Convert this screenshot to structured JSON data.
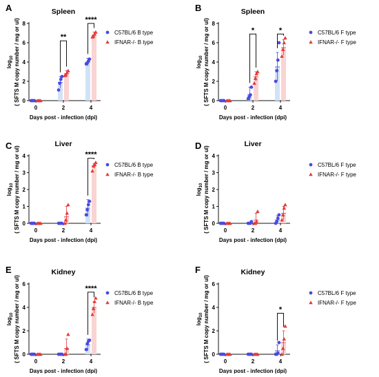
{
  "colors": {
    "c57": "#4a4ae0",
    "ifnar": "#e03c3c",
    "c57_bar": "#d3e2f5",
    "ifnar_bar": "#fad3d3",
    "axis": "#111111"
  },
  "common": {
    "ylabel_line1": "log",
    "ylabel_sub": "10",
    "ylabel_line2": "( SFTS M copy number / mg or ul)",
    "xlabel": "Days post - infection (dpi)"
  },
  "chart_data": [
    {
      "panel": "A",
      "title": "Spleen",
      "type": "bar",
      "categories": [
        "0",
        "2",
        "4"
      ],
      "ylim": [
        0,
        8
      ],
      "yticks": [
        0,
        2,
        4,
        6,
        8
      ],
      "series": [
        {
          "name": "C57BL/6 B type",
          "marker": "circle",
          "values": [
            0,
            1.9,
            4.0
          ],
          "errors": [
            0,
            0.6,
            0.4
          ],
          "points": [
            [
              0,
              0,
              0,
              0
            ],
            [
              1.1,
              1.8,
              2.2,
              2.5
            ],
            [
              3.8,
              3.9,
              4.1,
              4.3
            ]
          ]
        },
        {
          "name": "IFNAR-/- B type",
          "marker": "triangle",
          "values": [
            0,
            2.8,
            6.8
          ],
          "errors": [
            0,
            0.3,
            0.3
          ],
          "points": [
            [
              0,
              0,
              0,
              0
            ],
            [
              2.6,
              2.7,
              2.9,
              3.1
            ],
            [
              6.6,
              6.7,
              6.9,
              7.1
            ]
          ]
        }
      ],
      "significance": [
        {
          "category": 1,
          "label": "**",
          "y": 6.2
        },
        {
          "category": 2,
          "label": "****",
          "y": 8.0
        }
      ]
    },
    {
      "panel": "B",
      "title": "Spleen",
      "type": "bar",
      "categories": [
        "0",
        "2",
        "4"
      ],
      "ylim": [
        0,
        8
      ],
      "yticks": [
        0,
        2,
        4,
        6,
        8
      ],
      "series": [
        {
          "name": "C57BL/6 F type",
          "marker": "circle",
          "values": [
            0,
            0.6,
            3.5
          ],
          "errors": [
            0,
            0.8,
            1.5
          ],
          "points": [
            [
              0,
              0,
              0,
              0
            ],
            [
              0.2,
              0.4,
              0.6,
              1.4
            ],
            [
              2.0,
              3.1,
              4.2,
              6.0
            ]
          ]
        },
        {
          "name": "IFNAR-/- F type",
          "marker": "triangle",
          "values": [
            0,
            2.5,
            5.5
          ],
          "errors": [
            0,
            0.5,
            0.8
          ],
          "points": [
            [
              0,
              0,
              0,
              0
            ],
            [
              1.8,
              2.3,
              2.8,
              3.0
            ],
            [
              4.6,
              5.3,
              6.0,
              6.5
            ]
          ]
        }
      ],
      "significance": [
        {
          "category": 1,
          "label": "*",
          "y": 6.9
        },
        {
          "category": 2,
          "label": "*",
          "y": 6.9
        }
      ]
    },
    {
      "panel": "C",
      "title": "Liver",
      "type": "bar",
      "categories": [
        "0",
        "2",
        "4"
      ],
      "ylim": [
        0,
        4
      ],
      "yticks": [
        0,
        1,
        2,
        3,
        4
      ],
      "series": [
        {
          "name": "C57BL/6 B type",
          "marker": "circle",
          "values": [
            0,
            0,
            0.9
          ],
          "errors": [
            0,
            0,
            0.5
          ],
          "points": [
            [
              0,
              0,
              0,
              0
            ],
            [
              0,
              0,
              0,
              0
            ],
            [
              0.5,
              0.8,
              1.1,
              1.3
            ]
          ]
        },
        {
          "name": "IFNAR-/- B type",
          "marker": "triangle",
          "values": [
            0,
            0.4,
            3.4
          ],
          "errors": [
            0,
            0.6,
            0.15
          ],
          "points": [
            [
              0,
              0,
              0,
              0
            ],
            [
              0,
              0.2,
              0.6,
              1.1
            ],
            [
              3.1,
              3.4,
              3.5,
              3.6
            ]
          ]
        }
      ],
      "significance": [
        {
          "category": 2,
          "label": "****",
          "y": 3.85
        }
      ]
    },
    {
      "panel": "D",
      "title": "Liver",
      "type": "bar",
      "categories": [
        "0",
        "2",
        "4"
      ],
      "ylim": [
        0,
        4
      ],
      "yticks": [
        0,
        1,
        2,
        3,
        4
      ],
      "series": [
        {
          "name": "C57BL/6 F type",
          "marker": "circle",
          "values": [
            0,
            0,
            0.2
          ],
          "errors": [
            0,
            0,
            0.25
          ],
          "points": [
            [
              0,
              0,
              0,
              0
            ],
            [
              0,
              0,
              0,
              0.1
            ],
            [
              0,
              0.1,
              0.3,
              0.5
            ]
          ]
        },
        {
          "name": "IFNAR-/- F type",
          "marker": "triangle",
          "values": [
            0,
            0.2,
            0.6
          ],
          "errors": [
            0,
            0.4,
            0.4
          ],
          "points": [
            [
              0,
              0,
              0,
              0
            ],
            [
              0,
              0,
              0.1,
              0.7
            ],
            [
              0.2,
              0.5,
              0.9,
              1.1
            ]
          ]
        }
      ],
      "significance": []
    },
    {
      "panel": "E",
      "title": "Kidney",
      "type": "bar",
      "categories": [
        "0",
        "2",
        "4"
      ],
      "ylim": [
        0,
        6
      ],
      "yticks": [
        0,
        2,
        4,
        6
      ],
      "series": [
        {
          "name": "C57BL/6 B type",
          "marker": "circle",
          "values": [
            0,
            0,
            0.8
          ],
          "errors": [
            0,
            0,
            0.5
          ],
          "points": [
            [
              0,
              0,
              0,
              0
            ],
            [
              0,
              0,
              0,
              0
            ],
            [
              0.4,
              0.9,
              1.1,
              1.2
            ]
          ]
        },
        {
          "name": "IFNAR-/- B type",
          "marker": "triangle",
          "values": [
            0,
            0.5,
            4.0
          ],
          "errors": [
            0,
            0.8,
            0.5
          ],
          "points": [
            [
              0,
              0,
              0,
              0
            ],
            [
              0,
              0,
              0.5,
              1.7
            ],
            [
              3.4,
              3.9,
              4.5,
              4.8
            ]
          ]
        }
      ],
      "significance": [
        {
          "category": 2,
          "label": "****",
          "y": 5.3
        }
      ]
    },
    {
      "panel": "F",
      "title": "Kidney",
      "type": "bar",
      "categories": [
        "0",
        "2",
        "4"
      ],
      "ylim": [
        0,
        6
      ],
      "yticks": [
        0,
        2,
        4,
        6
      ],
      "series": [
        {
          "name": "C57BL/6 F type",
          "marker": "circle",
          "values": [
            0,
            0,
            0.3
          ],
          "errors": [
            0,
            0,
            0.5
          ],
          "points": [
            [
              0,
              0,
              0,
              0
            ],
            [
              0,
              0,
              0,
              0
            ],
            [
              0,
              0,
              0.1,
              1.0
            ]
          ]
        },
        {
          "name": "IFNAR-/- F type",
          "marker": "triangle",
          "values": [
            0,
            0,
            1.0
          ],
          "errors": [
            0,
            0,
            1.0
          ],
          "points": [
            [
              0,
              0,
              0,
              0
            ],
            [
              0,
              0,
              0,
              0
            ],
            [
              0,
              0.5,
              1.3,
              2.4
            ]
          ]
        }
      ],
      "significance": [
        {
          "category": 2,
          "label": "*",
          "y": 3.5
        }
      ]
    }
  ]
}
